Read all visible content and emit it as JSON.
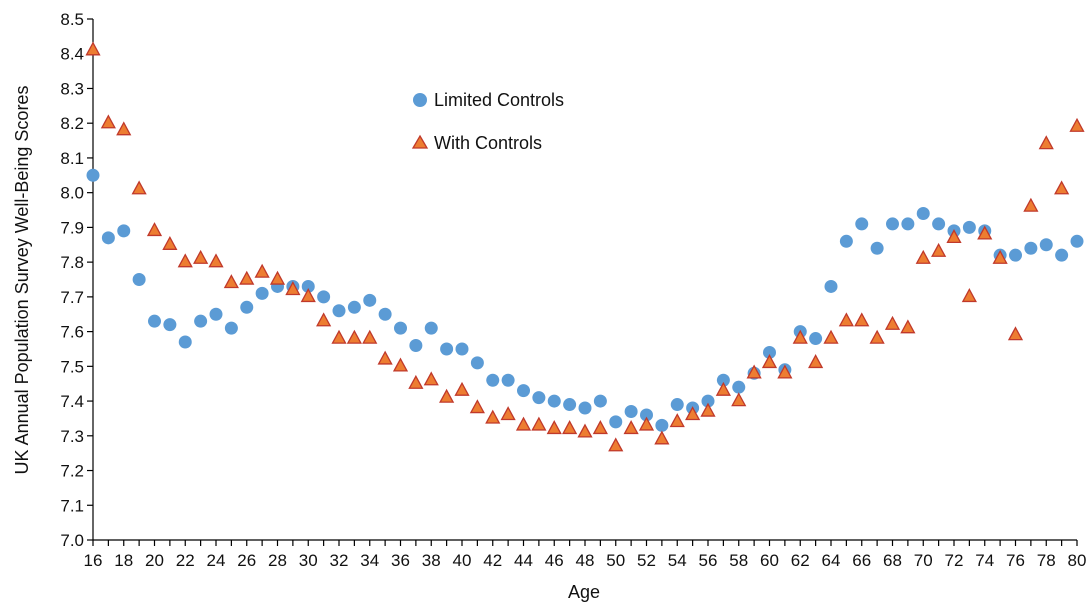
{
  "chart_data": {
    "type": "scatter",
    "title": "",
    "xlabel": "Age",
    "ylabel": "UK Annual Population Survey Well-Being Scores",
    "xlim": [
      16,
      80
    ],
    "ylim": [
      7.0,
      8.5
    ],
    "x_ticks": [
      "16",
      "18",
      "20",
      "22",
      "24",
      "26",
      "28",
      "30",
      "32",
      "34",
      "36",
      "38",
      "40",
      "42",
      "44",
      "46",
      "48",
      "50",
      "52",
      "54",
      "56",
      "58",
      "60",
      "62",
      "64",
      "66",
      "68",
      "70",
      "72",
      "74",
      "76",
      "78",
      "80"
    ],
    "y_ticks": [
      "7.0",
      "7.1",
      "7.2",
      "7.3",
      "7.4",
      "7.5",
      "7.6",
      "7.7",
      "7.8",
      "7.9",
      "8.0",
      "8.1",
      "8.2",
      "8.3",
      "8.4",
      "8.5"
    ],
    "grid": false,
    "legend_position": "top-center",
    "x": [
      16,
      17,
      18,
      19,
      20,
      21,
      22,
      23,
      24,
      25,
      26,
      27,
      28,
      29,
      30,
      31,
      32,
      33,
      34,
      35,
      36,
      37,
      38,
      39,
      40,
      41,
      42,
      43,
      44,
      45,
      46,
      47,
      48,
      49,
      50,
      51,
      52,
      53,
      54,
      55,
      56,
      57,
      58,
      59,
      60,
      61,
      62,
      63,
      64,
      65,
      66,
      67,
      68,
      69,
      70,
      71,
      72,
      73,
      74,
      75,
      76,
      77,
      78,
      79,
      80
    ],
    "series": [
      {
        "name": "Limited Controls",
        "marker": "circle",
        "color": "#5b9bd5",
        "values": [
          8.05,
          7.87,
          7.89,
          7.75,
          7.63,
          7.62,
          7.57,
          7.63,
          7.65,
          7.61,
          7.67,
          7.71,
          7.73,
          7.73,
          7.73,
          7.7,
          7.66,
          7.67,
          7.69,
          7.65,
          7.61,
          7.56,
          7.61,
          7.55,
          7.55,
          7.51,
          7.46,
          7.46,
          7.43,
          7.41,
          7.4,
          7.39,
          7.38,
          7.4,
          7.34,
          7.37,
          7.36,
          7.33,
          7.39,
          7.38,
          7.4,
          7.46,
          7.44,
          7.48,
          7.54,
          7.49,
          7.6,
          7.58,
          7.73,
          7.86,
          7.91,
          7.84,
          7.91,
          7.91,
          7.94,
          7.91,
          7.89,
          7.9,
          7.89,
          7.82,
          7.82,
          7.84,
          7.85,
          7.82,
          7.86
        ]
      },
      {
        "name": "With Controls",
        "marker": "triangle",
        "color": "#ed7d31",
        "stroke": "#c0392b",
        "values": [
          8.41,
          8.2,
          8.18,
          8.01,
          7.89,
          7.85,
          7.8,
          7.81,
          7.8,
          7.74,
          7.75,
          7.77,
          7.75,
          7.72,
          7.7,
          7.63,
          7.58,
          7.58,
          7.58,
          7.52,
          7.5,
          7.45,
          7.46,
          7.41,
          7.43,
          7.38,
          7.35,
          7.36,
          7.33,
          7.33,
          7.32,
          7.32,
          7.31,
          7.32,
          7.27,
          7.32,
          7.33,
          7.29,
          7.34,
          7.36,
          7.37,
          7.43,
          7.4,
          7.48,
          7.51,
          7.48,
          7.58,
          7.51,
          7.58,
          7.63,
          7.63,
          7.58,
          7.62,
          7.61,
          7.81,
          7.83,
          7.87,
          7.7,
          7.88,
          7.81,
          7.59,
          7.96,
          8.14,
          8.01,
          8.19
        ]
      }
    ]
  }
}
